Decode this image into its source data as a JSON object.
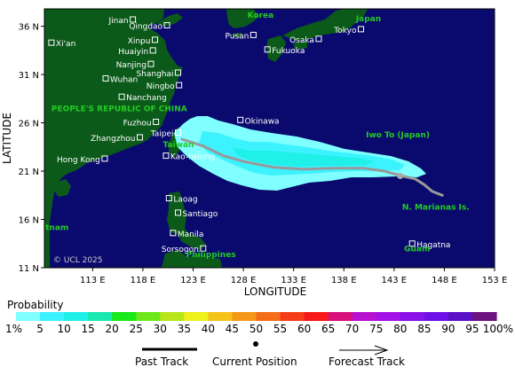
{
  "map": {
    "axis": {
      "x_label": "LONGITUDE",
      "y_label": "LATITUDE",
      "lon_ticks": [
        "113 E",
        "118 E",
        "123 E",
        "128 E",
        "133 E",
        "138 E",
        "143 E",
        "148 E",
        "153 E"
      ],
      "lat_ticks": [
        "36 N",
        "31 N",
        "26 N",
        "21 N",
        "16 N",
        "11 N"
      ]
    },
    "copyright": "© UCL 2025",
    "colors": {
      "ocean": "#0a0a6e",
      "land": "#0b5a1a",
      "place_label": "#ffffff",
      "region_label": "#22cc22",
      "past_track": "#999999"
    },
    "cities": [
      {
        "name": "Jinan",
        "lon": 117.0,
        "lat": 36.7
      },
      {
        "name": "Qingdao",
        "lon": 120.4,
        "lat": 36.1
      },
      {
        "name": "Xi'an",
        "lon": 108.9,
        "lat": 34.3
      },
      {
        "name": "Xinpu",
        "lon": 119.2,
        "lat": 34.6
      },
      {
        "name": "Huaiyin",
        "lon": 119.0,
        "lat": 33.5
      },
      {
        "name": "Nanjing",
        "lon": 118.8,
        "lat": 32.1
      },
      {
        "name": "Shanghai",
        "lon": 121.5,
        "lat": 31.2
      },
      {
        "name": "Wuhan",
        "lon": 114.3,
        "lat": 30.6
      },
      {
        "name": "Ningbo",
        "lon": 121.6,
        "lat": 29.9
      },
      {
        "name": "Nanchang",
        "lon": 115.9,
        "lat": 28.7
      },
      {
        "name": "Fuzhou",
        "lon": 119.3,
        "lat": 26.1
      },
      {
        "name": "Zhangzhou",
        "lon": 117.7,
        "lat": 24.5
      },
      {
        "name": "Taipei",
        "lon": 121.5,
        "lat": 25.0
      },
      {
        "name": "Hong Kong",
        "lon": 114.2,
        "lat": 22.3
      },
      {
        "name": "Kao-hsiung",
        "lon": 120.3,
        "lat": 22.6
      },
      {
        "name": "Laoag",
        "lon": 120.6,
        "lat": 18.2
      },
      {
        "name": "Santiago",
        "lon": 121.5,
        "lat": 16.7
      },
      {
        "name": "Manila",
        "lon": 121.0,
        "lat": 14.6
      },
      {
        "name": "Sorsogon",
        "lon": 124.0,
        "lat": 13.0
      },
      {
        "name": "Okinawa",
        "lon": 127.7,
        "lat": 26.3
      },
      {
        "name": "Pusan",
        "lon": 129.0,
        "lat": 35.1
      },
      {
        "name": "Fukuoka",
        "lon": 130.4,
        "lat": 33.6
      },
      {
        "name": "Osaka",
        "lon": 135.5,
        "lat": 34.7
      },
      {
        "name": "Tokyo",
        "lon": 139.7,
        "lat": 35.7
      },
      {
        "name": "Hagatna",
        "lon": 144.8,
        "lat": 13.5
      }
    ],
    "regions": [
      {
        "name": "Korea",
        "lon": 128.4,
        "lat": 36.9
      },
      {
        "name": "Japan",
        "lon": 139.2,
        "lat": 36.5
      },
      {
        "name": "PEOPLE'S REPUBLIC OF CHINA",
        "lon": 108.9,
        "lat": 27.2
      },
      {
        "name": "Taiwan",
        "lon": 120.0,
        "lat": 23.5
      },
      {
        "name": "Iwo To (Japan)",
        "lon": 140.2,
        "lat": 24.5
      },
      {
        "name": "N. Marianas Is.",
        "lon": 143.8,
        "lat": 17.0
      },
      {
        "name": "Guam",
        "lon": 144.0,
        "lat": 12.7
      },
      {
        "name": "tnam",
        "lon": 108.3,
        "lat": 14.9
      },
      {
        "name": "Philippines",
        "lon": 122.3,
        "lat": 12.1
      }
    ],
    "past_track": [
      [
        121.9,
        24.3
      ],
      [
        124,
        23.6
      ],
      [
        126,
        22.6
      ],
      [
        128,
        22.0
      ],
      [
        131,
        21.4
      ],
      [
        134,
        21.2
      ],
      [
        137,
        21.3
      ],
      [
        140,
        21.3
      ],
      [
        142,
        21.0
      ],
      [
        143.8,
        20.5
      ],
      [
        145.1,
        20.2
      ],
      [
        146,
        19.6
      ],
      [
        146.8,
        18.9
      ],
      [
        147.8,
        18.5
      ]
    ],
    "current_position": {
      "lon": 143.6,
      "lat": 20.5
    }
  },
  "legend": {
    "title": "Probability",
    "labels": [
      "1%",
      "5",
      "10",
      "15",
      "20",
      "25",
      "30",
      "35",
      "40",
      "45",
      "50",
      "55",
      "60",
      "65",
      "70",
      "75",
      "80",
      "85",
      "90",
      "95",
      "100%"
    ],
    "colors": [
      "#7fffff",
      "#3cf2ff",
      "#1ff0e8",
      "#19e8b0",
      "#19e819",
      "#6ee81a",
      "#b8e61a",
      "#f0f01a",
      "#f5c319",
      "#f59819",
      "#f56c19",
      "#f53c19",
      "#f51919",
      "#d8117a",
      "#b811d0",
      "#a311e8",
      "#8a11e8",
      "#6e11e8",
      "#5a11c8",
      "#6e1280"
    ]
  },
  "key": {
    "past_track_label": "Past Track",
    "current_position_label": "Current Position",
    "forecast_track_label": "Forecast Track"
  }
}
